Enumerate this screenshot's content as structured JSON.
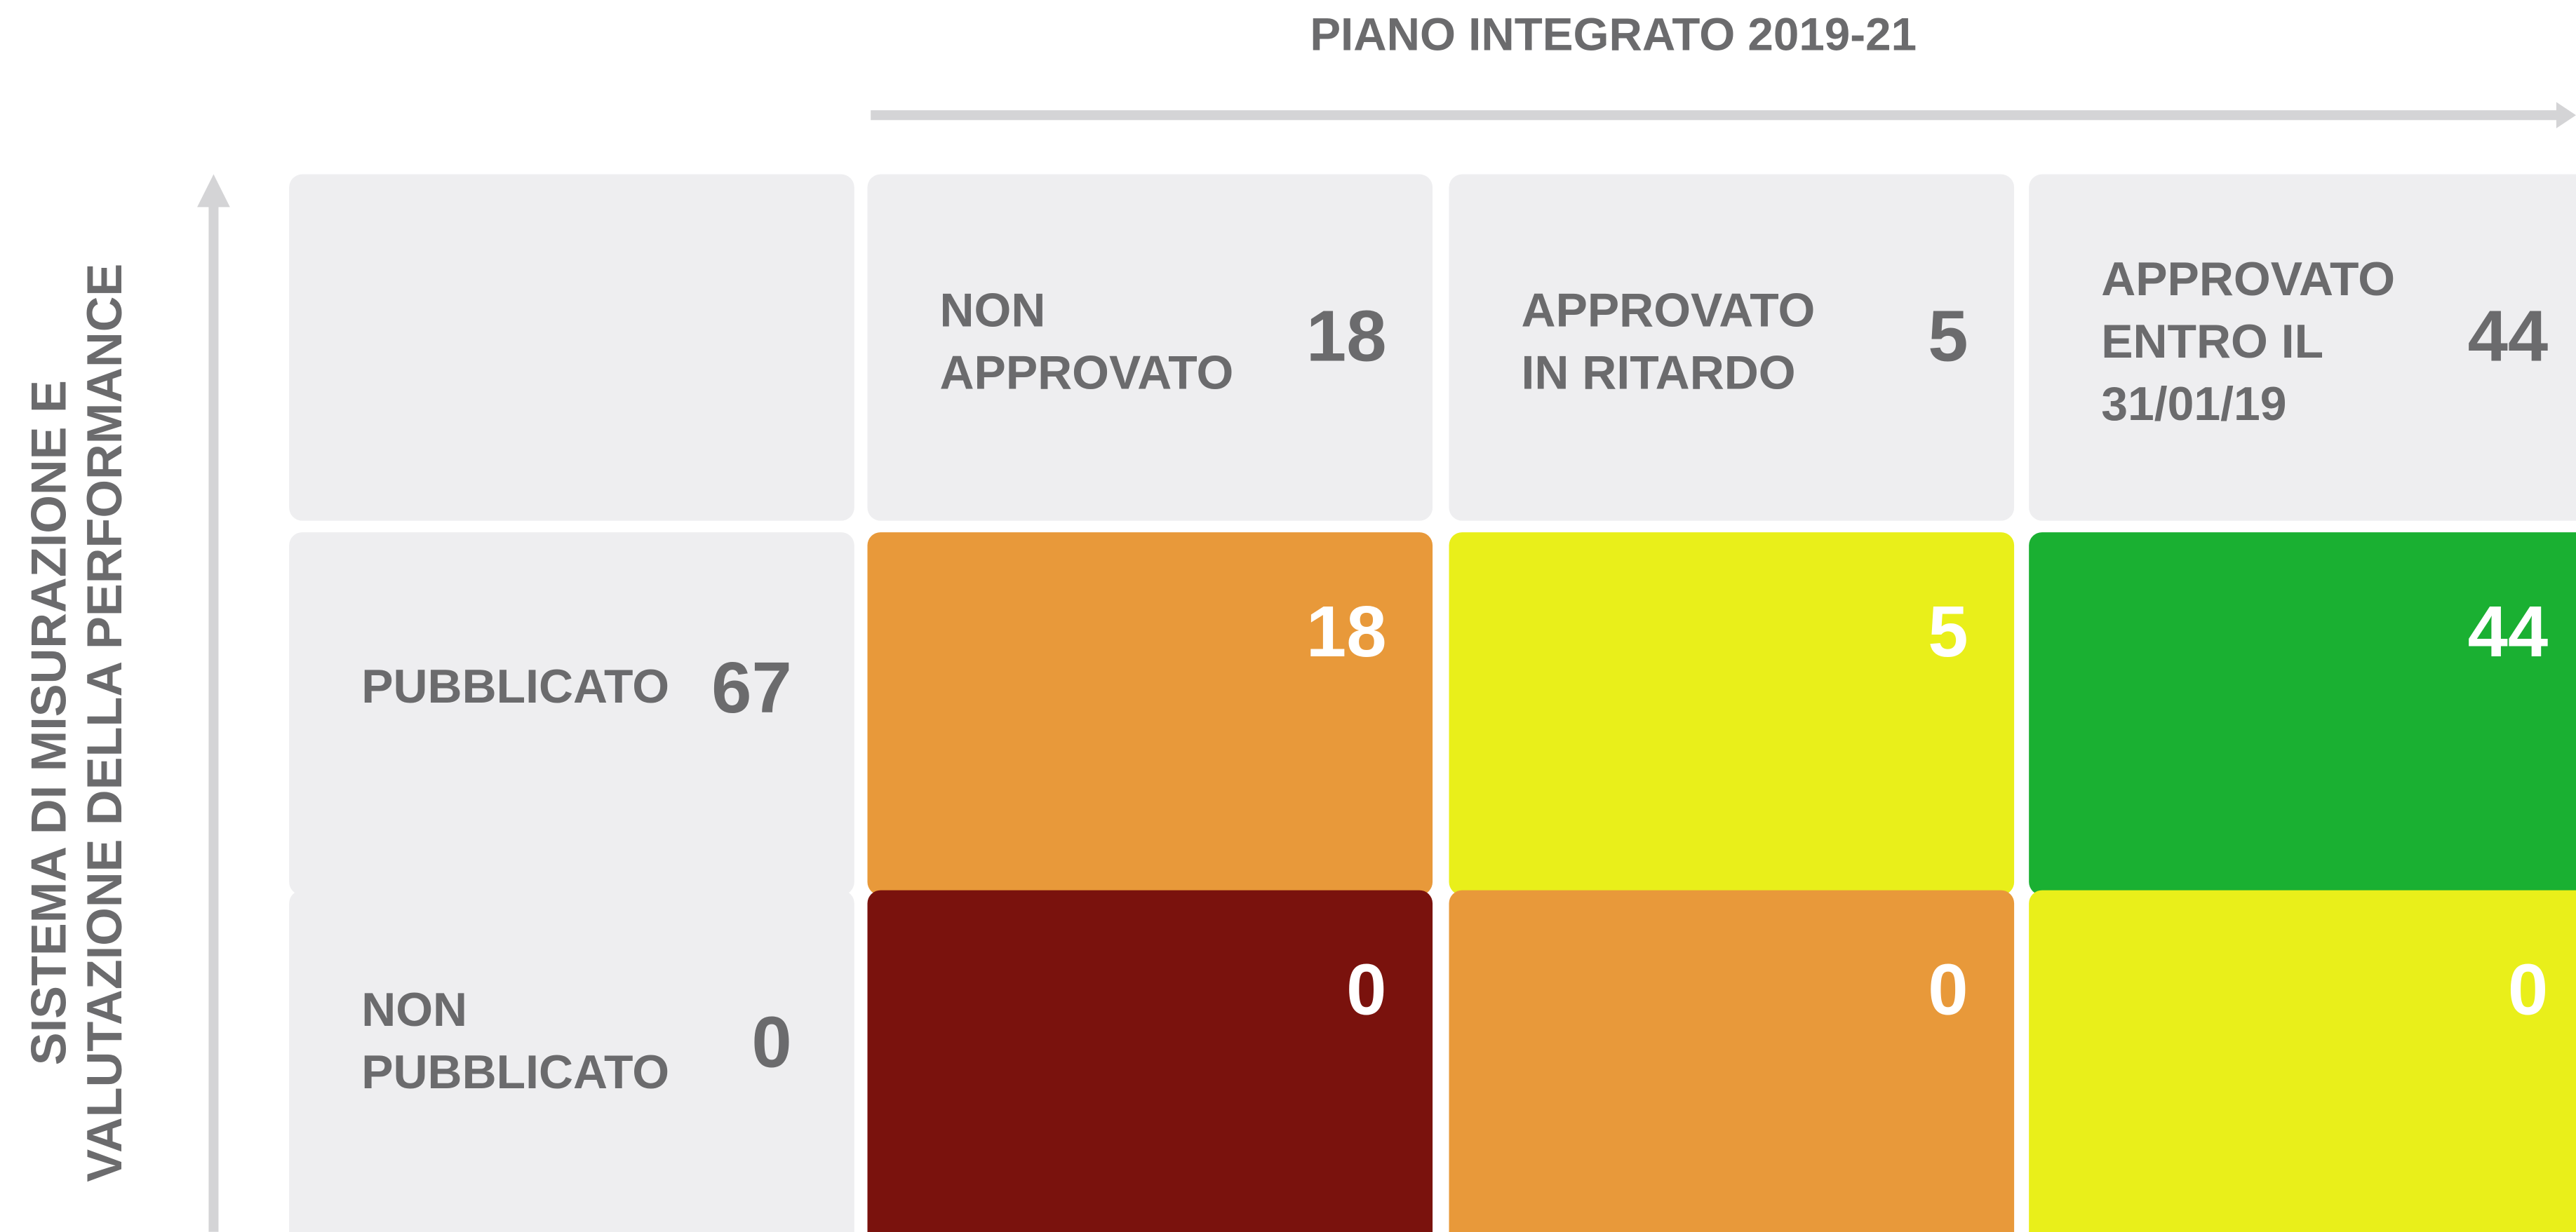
{
  "title": "PIANO INTEGRATO 2019-21",
  "y_axis_label": [
    "SISTEMA DI MISURAZIONE E",
    "VALUTAZIONE DELLA PERFORMANCE"
  ],
  "columns": [
    {
      "label": [
        "NON",
        "APPROVATO"
      ],
      "count": 18
    },
    {
      "label": [
        "APPROVATO",
        "IN RITARDO"
      ],
      "count": 5
    },
    {
      "label": [
        "APPROVATO",
        "ENTRO IL",
        "31/01/19"
      ],
      "count": 44
    }
  ],
  "rows": [
    {
      "label": [
        "PUBBLICATO"
      ],
      "count": 67,
      "cells": [
        18,
        5,
        44
      ]
    },
    {
      "label": [
        "NON",
        "PUBBLICATO"
      ],
      "count": 0,
      "cells": [
        0,
        0,
        0
      ]
    }
  ]
}
